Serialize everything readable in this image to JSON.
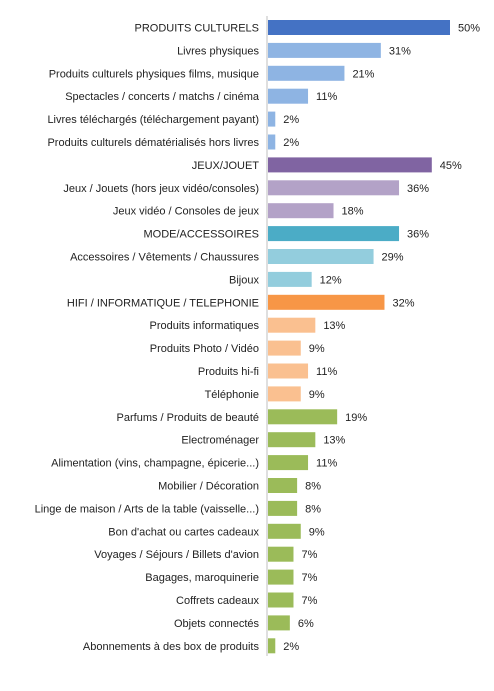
{
  "chart_data": {
    "type": "bar",
    "orientation": "horizontal",
    "title": "",
    "xlabel": "",
    "ylabel": "",
    "xlim": [
      0,
      50
    ],
    "grid": false,
    "legend": "none",
    "colors": {
      "culturels_header": "#4472C4",
      "culturels": "#8EB4E3",
      "jeux_header": "#8064A2",
      "jeux": "#B3A2C7",
      "mode_header": "#4BACC6",
      "mode": "#93CDDD",
      "hifi_header": "#F79646",
      "hifi": "#FAC090",
      "autres": "#9BBB59"
    },
    "categories": [
      "PRODUITS CULTURELS",
      "Livres physiques",
      "Produits culturels physiques films, musique",
      "Spectacles / concerts / matchs / cinéma",
      "Livres téléchargés (téléchargement payant)",
      "Produits culturels dématérialisés hors livres",
      "JEUX/JOUET",
      "Jeux / Jouets (hors jeux vidéo/consoles)",
      "Jeux vidéo / Consoles de jeux",
      "MODE/ACCESSOIRES",
      "Accessoires / Vêtements / Chaussures",
      "Bijoux",
      "HIFI / INFORMATIQUE / TELEPHONIE",
      "Produits informatiques",
      "Produits Photo / Vidéo",
      "Produits hi-fi",
      "Téléphonie",
      "Parfums / Produits de beauté",
      "Electroménager",
      "Alimentation (vins, champagne, épicerie...)",
      "Mobilier / Décoration",
      "Linge de maison / Arts de la table (vaisselle...)",
      "Bon d'achat ou cartes cadeaux",
      "Voyages / Séjours / Billets d'avion",
      "Bagages, maroquinerie",
      "Coffrets cadeaux",
      "Objets connectés",
      "Abonnements à des box de produits"
    ],
    "values": [
      50,
      31,
      21,
      11,
      2,
      2,
      45,
      36,
      18,
      36,
      29,
      12,
      32,
      13,
      9,
      11,
      9,
      19,
      13,
      11,
      8,
      8,
      9,
      7,
      7,
      7,
      6,
      2
    ],
    "value_labels": [
      "50%",
      "31%",
      "21%",
      "11%",
      "2%",
      "2%",
      "45%",
      "36%",
      "18%",
      "36%",
      "29%",
      "12%",
      "32%",
      "13%",
      "9%",
      "11%",
      "9%",
      "19%",
      "13%",
      "11%",
      "8%",
      "8%",
      "9%",
      "7%",
      "7%",
      "7%",
      "6%",
      "2%"
    ],
    "bar_color_keys": [
      "culturels_header",
      "culturels",
      "culturels",
      "culturels",
      "culturels",
      "culturels",
      "jeux_header",
      "jeux",
      "jeux",
      "mode_header",
      "mode",
      "mode",
      "hifi_header",
      "hifi",
      "hifi",
      "hifi",
      "hifi",
      "autres",
      "autres",
      "autres",
      "autres",
      "autres",
      "autres",
      "autres",
      "autres",
      "autres",
      "autres",
      "autres"
    ]
  }
}
